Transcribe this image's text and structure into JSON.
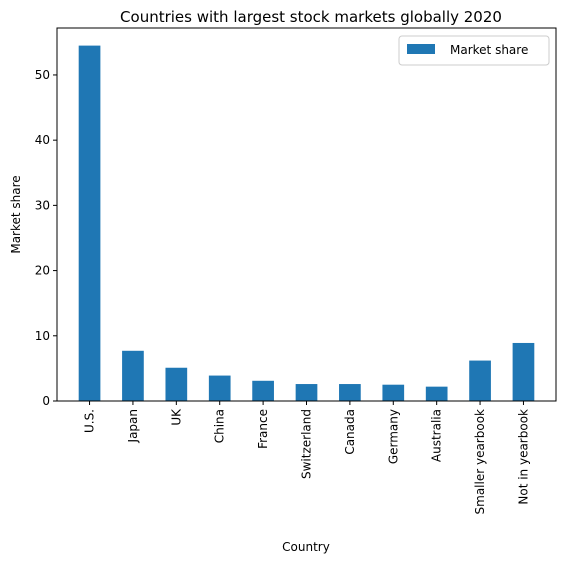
{
  "chart_data": {
    "type": "bar",
    "title": "Countries with largest stock markets globally 2020",
    "xlabel": "Country",
    "ylabel": "Market share",
    "categories": [
      "U.S.",
      "Japan",
      "UK",
      "China",
      "France",
      "Switzerland",
      "Canada",
      "Germany",
      "Australia",
      "Smaller yearbook",
      "Not in yearbook"
    ],
    "series": [
      {
        "name": "Market share",
        "color": "#1f77b4",
        "values": [
          54.5,
          7.7,
          5.1,
          3.9,
          3.1,
          2.6,
          2.6,
          2.5,
          2.2,
          6.2,
          8.9
        ]
      }
    ],
    "ylim": [
      0,
      57.2
    ],
    "yticks": [
      0,
      10,
      20,
      30,
      40,
      50
    ],
    "grid": false,
    "legend": "top-right"
  }
}
